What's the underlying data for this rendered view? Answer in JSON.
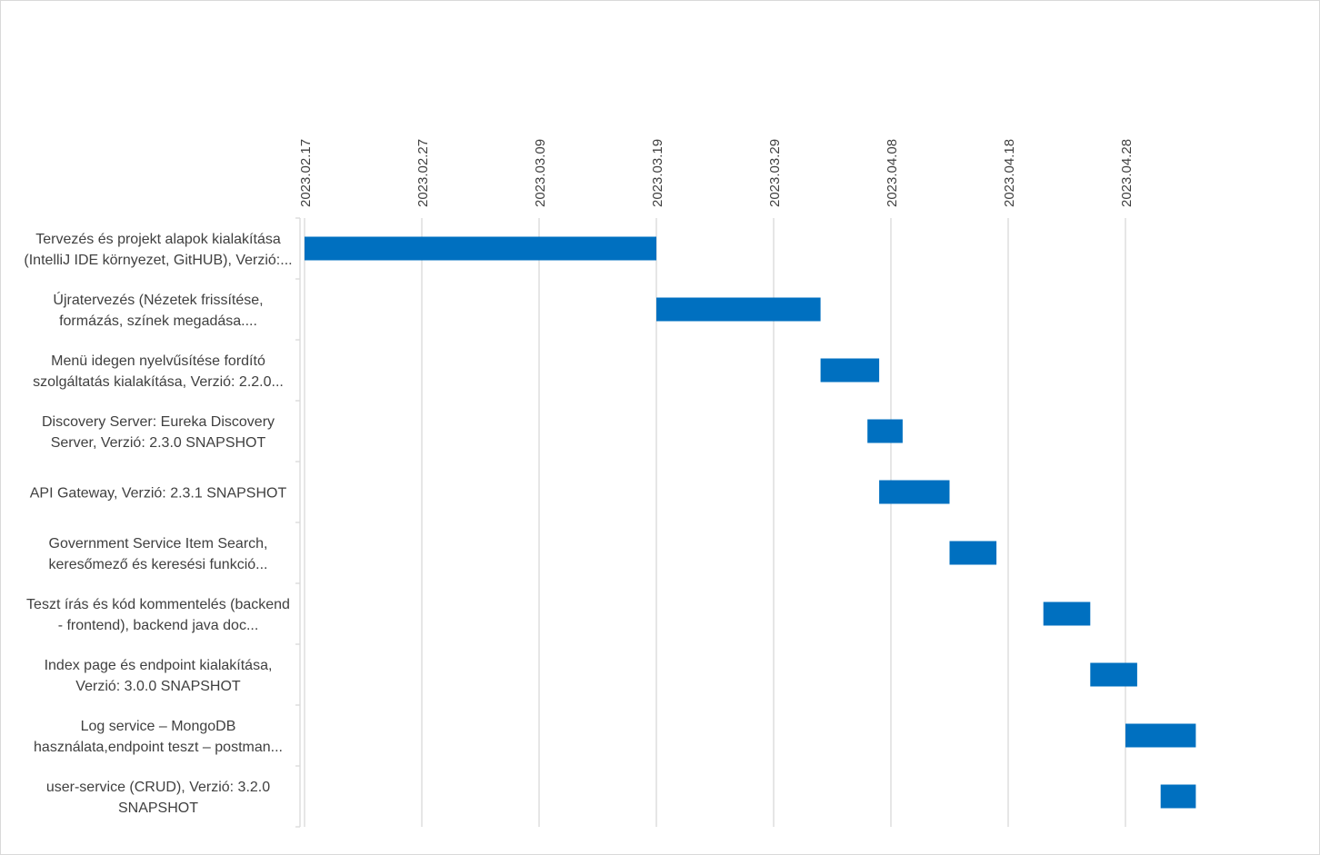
{
  "chart_data": {
    "type": "bar",
    "orientation": "horizontal-gantt",
    "x_axis": {
      "position": "top",
      "min": "2023-02-17",
      "max": "2023-05-08",
      "ticks": [
        "2023.02.17",
        "2023.02.27",
        "2023.03.09",
        "2023.03.19",
        "2023.03.29",
        "2023.04.08",
        "2023.04.18",
        "2023.04.28"
      ],
      "tick_dates": [
        "2023-02-17",
        "2023-02-27",
        "2023-03-09",
        "2023-03-19",
        "2023-03-29",
        "2023-04-08",
        "2023-04-18",
        "2023-04-28"
      ],
      "grid": true
    },
    "tasks": [
      {
        "label_lines": [
          "Tervezés és projekt alapok kialakítása",
          "(IntelliJ IDE környezet, GitHUB), Verzió:..."
        ],
        "start": "2023-02-17",
        "end": "2023-03-19"
      },
      {
        "label_lines": [
          "Újratervezés (Nézetek frissítése,",
          "formázás, színek megadása...."
        ],
        "start": "2023-03-19",
        "end": "2023-04-02"
      },
      {
        "label_lines": [
          "Menü idegen nyelvűsítése fordító",
          "szolgáltatás kialakítása, Verzió: 2.2.0..."
        ],
        "start": "2023-04-02",
        "end": "2023-04-07"
      },
      {
        "label_lines": [
          "Discovery Server: Eureka Discovery",
          "Server, Verzió: 2.3.0 SNAPSHOT"
        ],
        "start": "2023-04-06",
        "end": "2023-04-09"
      },
      {
        "label_lines": [
          "API Gateway, Verzió: 2.3.1 SNAPSHOT"
        ],
        "start": "2023-04-07",
        "end": "2023-04-13"
      },
      {
        "label_lines": [
          "Government Service Item Search,",
          "keresőmező és keresési funkció..."
        ],
        "start": "2023-04-13",
        "end": "2023-04-17"
      },
      {
        "label_lines": [
          "Teszt írás és kód kommentelés (backend",
          "- frontend), backend java doc..."
        ],
        "start": "2023-04-21",
        "end": "2023-04-25"
      },
      {
        "label_lines": [
          "Index page és endpoint kialakítása,",
          "Verzió: 3.0.0 SNAPSHOT"
        ],
        "start": "2023-04-25",
        "end": "2023-04-29"
      },
      {
        "label_lines": [
          "Log service – MongoDB",
          "használata,endpoint teszt – postman..."
        ],
        "start": "2023-04-28",
        "end": "2023-05-04"
      },
      {
        "label_lines": [
          "user-service (CRUD), Verzió: 3.2.0",
          "SNAPSHOT"
        ],
        "start": "2023-05-01",
        "end": "2023-05-04"
      }
    ],
    "colors": {
      "bar": "#0070c0",
      "grid": "#d9d9d9",
      "text": "#404040",
      "frame": "#d9d9d9"
    }
  }
}
